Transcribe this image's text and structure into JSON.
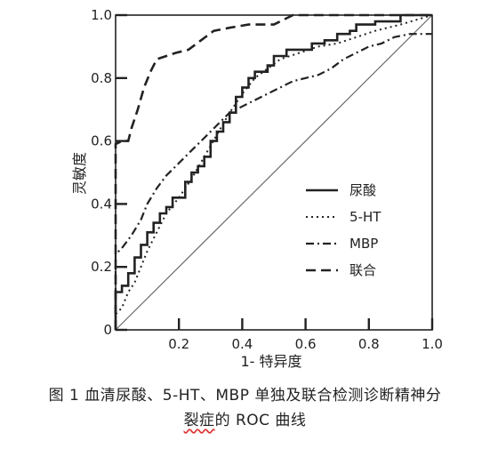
{
  "chart_data": {
    "type": "line",
    "xlabel": "1- 特异度",
    "ylabel": "灵敏度",
    "xlim": [
      0,
      1
    ],
    "ylim": [
      0,
      1
    ],
    "x_ticks": [
      "0.2",
      "0.4",
      "0.6",
      "0.8",
      "1.0"
    ],
    "y_ticks": [
      "0",
      "0.2",
      "0.4",
      "0.6",
      "0.8",
      "1.0"
    ],
    "legend_position": "right-center",
    "grid": false,
    "reference_line": [
      [
        0,
        0
      ],
      [
        1,
        1
      ]
    ],
    "series": [
      {
        "name": "尿酸",
        "style": "solid",
        "points": [
          [
            0,
            0
          ],
          [
            0,
            0.12
          ],
          [
            0.02,
            0.12
          ],
          [
            0.02,
            0.14
          ],
          [
            0.04,
            0.14
          ],
          [
            0.04,
            0.18
          ],
          [
            0.06,
            0.18
          ],
          [
            0.06,
            0.23
          ],
          [
            0.08,
            0.23
          ],
          [
            0.08,
            0.27
          ],
          [
            0.1,
            0.27
          ],
          [
            0.1,
            0.31
          ],
          [
            0.12,
            0.31
          ],
          [
            0.12,
            0.34
          ],
          [
            0.14,
            0.34
          ],
          [
            0.14,
            0.37
          ],
          [
            0.16,
            0.37
          ],
          [
            0.16,
            0.39
          ],
          [
            0.18,
            0.39
          ],
          [
            0.18,
            0.42
          ],
          [
            0.22,
            0.42
          ],
          [
            0.22,
            0.47
          ],
          [
            0.24,
            0.47
          ],
          [
            0.24,
            0.5
          ],
          [
            0.26,
            0.5
          ],
          [
            0.26,
            0.52
          ],
          [
            0.28,
            0.52
          ],
          [
            0.28,
            0.55
          ],
          [
            0.3,
            0.55
          ],
          [
            0.3,
            0.6
          ],
          [
            0.32,
            0.6
          ],
          [
            0.32,
            0.63
          ],
          [
            0.34,
            0.63
          ],
          [
            0.34,
            0.66
          ],
          [
            0.36,
            0.66
          ],
          [
            0.36,
            0.69
          ],
          [
            0.38,
            0.69
          ],
          [
            0.38,
            0.74
          ],
          [
            0.4,
            0.74
          ],
          [
            0.4,
            0.77
          ],
          [
            0.42,
            0.77
          ],
          [
            0.42,
            0.8
          ],
          [
            0.44,
            0.8
          ],
          [
            0.44,
            0.82
          ],
          [
            0.48,
            0.82
          ],
          [
            0.48,
            0.84
          ],
          [
            0.5,
            0.84
          ],
          [
            0.5,
            0.87
          ],
          [
            0.54,
            0.87
          ],
          [
            0.54,
            0.89
          ],
          [
            0.62,
            0.89
          ],
          [
            0.62,
            0.91
          ],
          [
            0.66,
            0.91
          ],
          [
            0.66,
            0.92
          ],
          [
            0.7,
            0.92
          ],
          [
            0.7,
            0.94
          ],
          [
            0.74,
            0.94
          ],
          [
            0.74,
            0.95
          ],
          [
            0.76,
            0.95
          ],
          [
            0.76,
            0.97
          ],
          [
            0.82,
            0.97
          ],
          [
            0.82,
            0.98
          ],
          [
            0.9,
            0.98
          ],
          [
            0.9,
            1.0
          ],
          [
            1.0,
            1.0
          ]
        ]
      },
      {
        "name": "5-HT",
        "style": "dotted",
        "points": [
          [
            0,
            0
          ],
          [
            0,
            0.05
          ],
          [
            0.02,
            0.07
          ],
          [
            0.04,
            0.12
          ],
          [
            0.06,
            0.15
          ],
          [
            0.08,
            0.2
          ],
          [
            0.1,
            0.25
          ],
          [
            0.12,
            0.29
          ],
          [
            0.14,
            0.33
          ],
          [
            0.16,
            0.37
          ],
          [
            0.2,
            0.42
          ],
          [
            0.24,
            0.48
          ],
          [
            0.28,
            0.55
          ],
          [
            0.32,
            0.62
          ],
          [
            0.36,
            0.69
          ],
          [
            0.4,
            0.75
          ],
          [
            0.44,
            0.8
          ],
          [
            0.48,
            0.83
          ],
          [
            0.52,
            0.86
          ],
          [
            0.58,
            0.88
          ],
          [
            0.64,
            0.9
          ],
          [
            0.7,
            0.91
          ],
          [
            0.76,
            0.93
          ],
          [
            0.82,
            0.95
          ],
          [
            0.9,
            0.97
          ],
          [
            1.0,
            1.0
          ]
        ]
      },
      {
        "name": "MBP",
        "style": "dashdot",
        "points": [
          [
            0,
            0
          ],
          [
            0,
            0.24
          ],
          [
            0.02,
            0.26
          ],
          [
            0.05,
            0.3
          ],
          [
            0.08,
            0.35
          ],
          [
            0.1,
            0.4
          ],
          [
            0.13,
            0.45
          ],
          [
            0.16,
            0.49
          ],
          [
            0.2,
            0.53
          ],
          [
            0.24,
            0.57
          ],
          [
            0.28,
            0.61
          ],
          [
            0.32,
            0.65
          ],
          [
            0.36,
            0.69
          ],
          [
            0.4,
            0.71
          ],
          [
            0.44,
            0.73
          ],
          [
            0.48,
            0.75
          ],
          [
            0.52,
            0.77
          ],
          [
            0.56,
            0.79
          ],
          [
            0.6,
            0.8
          ],
          [
            0.64,
            0.81
          ],
          [
            0.68,
            0.83
          ],
          [
            0.72,
            0.86
          ],
          [
            0.76,
            0.88
          ],
          [
            0.8,
            0.9
          ],
          [
            0.84,
            0.91
          ],
          [
            0.88,
            0.93
          ],
          [
            0.93,
            0.94
          ],
          [
            1.0,
            0.94
          ]
        ]
      },
      {
        "name": "联合",
        "style": "dashed",
        "points": [
          [
            0,
            0
          ],
          [
            0,
            0.59
          ],
          [
            0.02,
            0.6
          ],
          [
            0.04,
            0.6
          ],
          [
            0.05,
            0.64
          ],
          [
            0.07,
            0.7
          ],
          [
            0.09,
            0.77
          ],
          [
            0.11,
            0.82
          ],
          [
            0.13,
            0.86
          ],
          [
            0.16,
            0.87
          ],
          [
            0.19,
            0.88
          ],
          [
            0.23,
            0.89
          ],
          [
            0.27,
            0.92
          ],
          [
            0.31,
            0.95
          ],
          [
            0.36,
            0.96
          ],
          [
            0.42,
            0.97
          ],
          [
            0.5,
            0.97
          ],
          [
            0.56,
            1.0
          ],
          [
            1.0,
            1.0
          ]
        ]
      }
    ]
  },
  "caption": {
    "line1": "图 1  血清尿酸、5-HT、MBP 单独及联合检测诊断精神分",
    "line2_marked": "裂症",
    "line2_rest": "的 ROC 曲线"
  },
  "colors": {
    "ink": "#222222",
    "reference": "#666666"
  }
}
